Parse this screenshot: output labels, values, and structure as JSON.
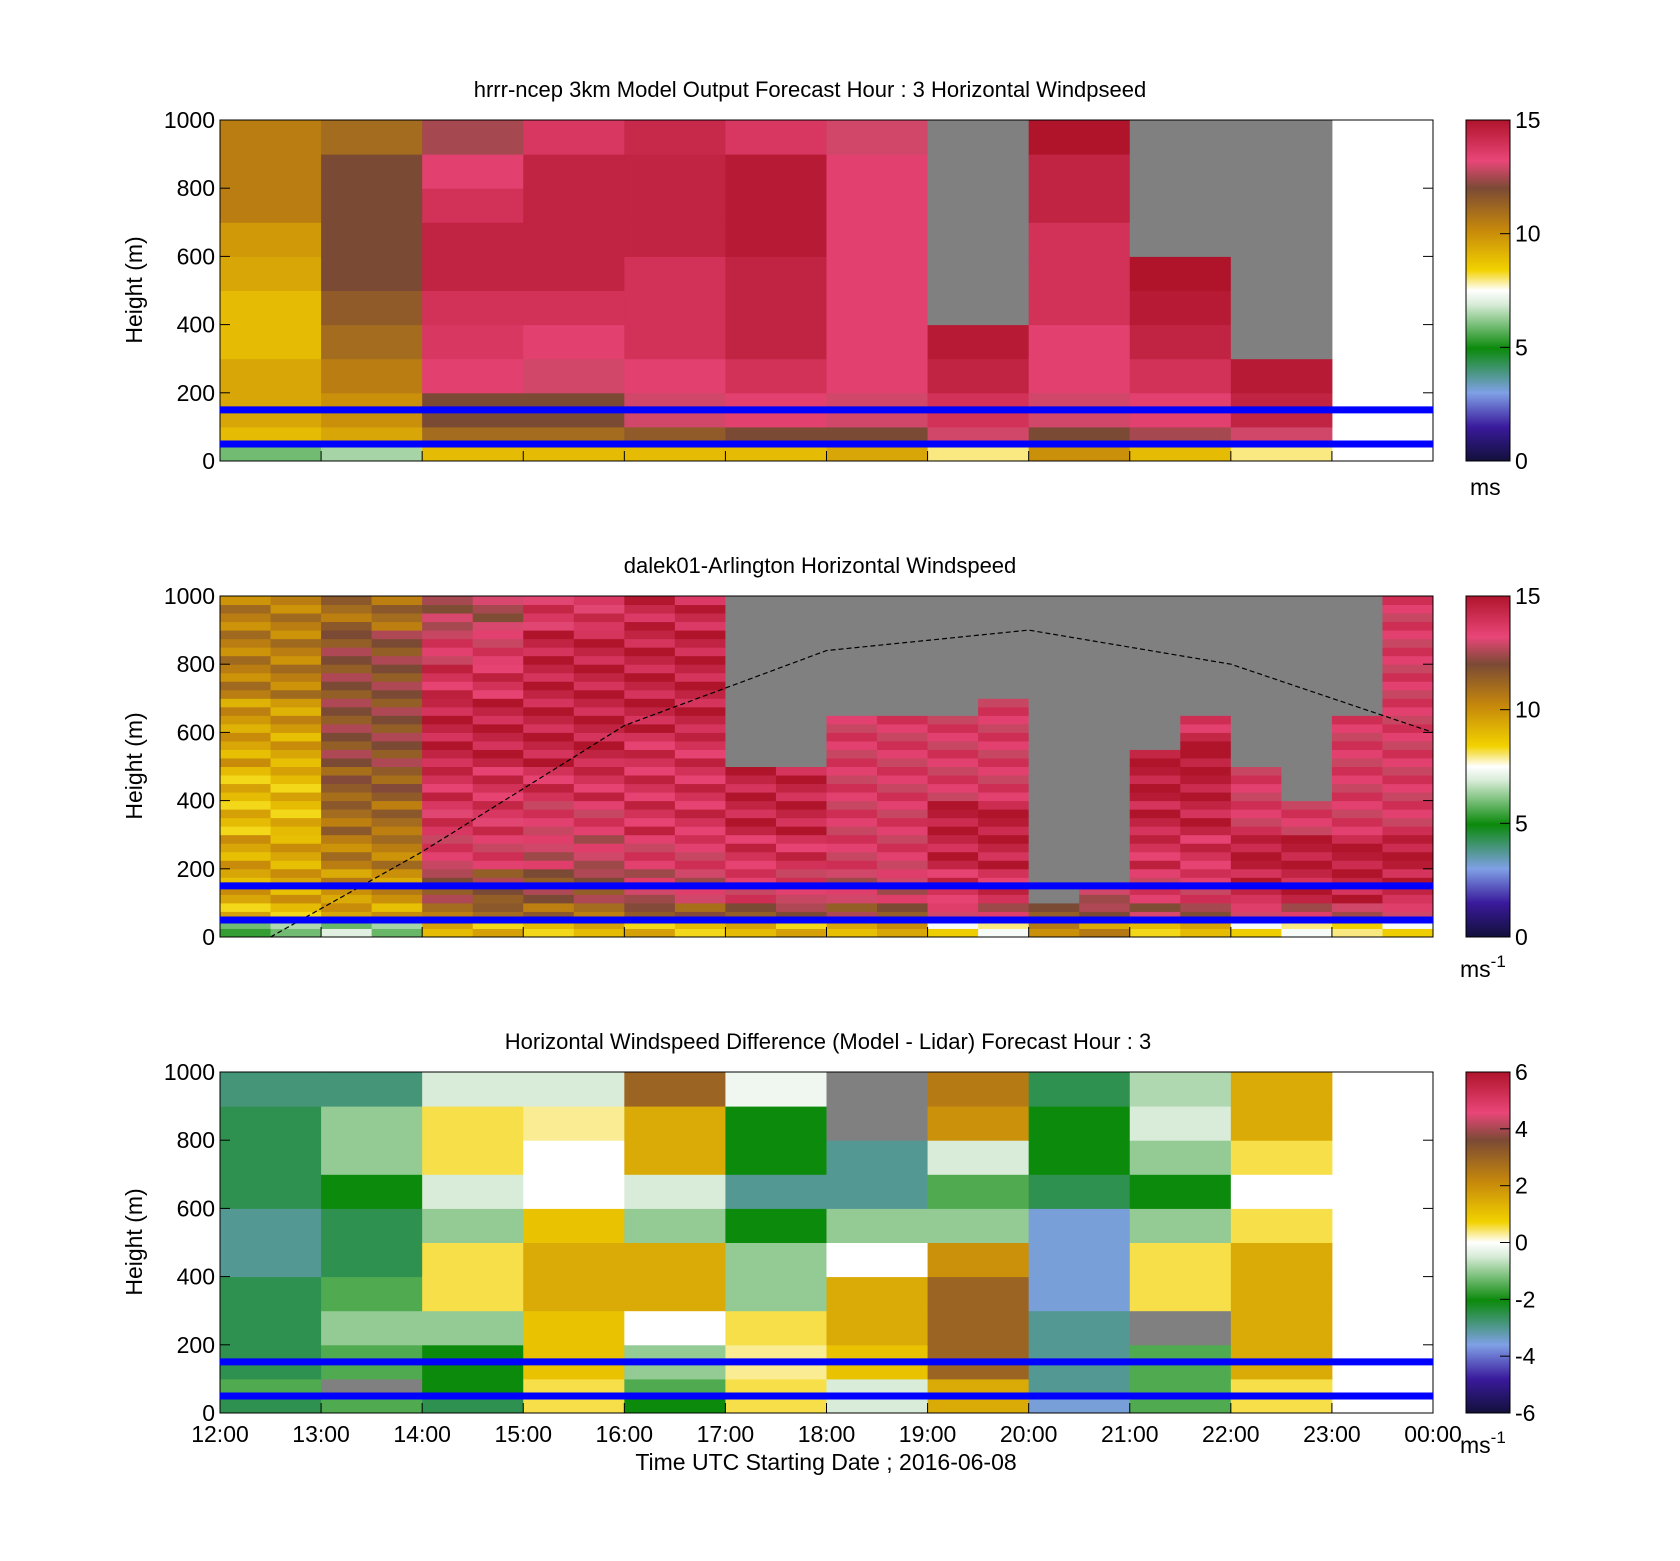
{
  "figure": {
    "xlabel": "Time UTC  Starting Date ; 2016-06-08",
    "x_ticks": [
      "12:00",
      "13:00",
      "14:00",
      "15:00",
      "16:00",
      "17:00",
      "18:00",
      "19:00",
      "20:00",
      "21:00",
      "22:00",
      "23:00",
      "00:00"
    ]
  },
  "chart_data": [
    {
      "type": "heatmap",
      "title": "hrrr-ncep 3km Model Output   Forecast Hour : 3 Horizontal Windpseed",
      "ylabel": "Height (m)",
      "ylim": [
        0,
        1000
      ],
      "y_ticks": [
        "0",
        "200",
        "400",
        "600",
        "800",
        "1000"
      ],
      "colorbar": {
        "label": "ms",
        "superscript": "",
        "ticks": [
          "0",
          "5",
          "10",
          "15"
        ],
        "range": [
          0,
          15
        ]
      },
      "hours": [
        "12:00",
        "13:00",
        "14:00",
        "15:00",
        "16:00",
        "17:00",
        "18:00",
        "19:00",
        "20:00",
        "21:00",
        "22:00"
      ],
      "reference_lines_m": [
        50,
        150
      ],
      "profile_heights_m": [
        25,
        75,
        150,
        250,
        350,
        450,
        550,
        650,
        750,
        850,
        950
      ],
      "windspeed_ms": [
        [
          6,
          9,
          9.5,
          9.5,
          9,
          9,
          9.5,
          9.8,
          10.5,
          10.5,
          10.5
        ],
        [
          6.5,
          9.5,
          10,
          10.5,
          11,
          11.5,
          12,
          12,
          12,
          12,
          11
        ],
        [
          9,
          11,
          12,
          13.5,
          13.8,
          14,
          14.5,
          14.5,
          14,
          13.5,
          12.5
        ],
        [
          9,
          11,
          12,
          13,
          13.5,
          14,
          14.5,
          14.5,
          14.5,
          14.5,
          13.8
        ],
        [
          9,
          11.5,
          13,
          13.5,
          14,
          14,
          14,
          14.5,
          14.5,
          14.5,
          14.3
        ],
        [
          9,
          12,
          13.5,
          14,
          14.5,
          14.5,
          14.5,
          14.8,
          14.8,
          14.8,
          13.8
        ],
        [
          9.5,
          12,
          13,
          13.5,
          13.5,
          13.5,
          13.5,
          13.5,
          13.5,
          13.5,
          13
        ],
        [
          8,
          13,
          14,
          14.5,
          14.8,
          null,
          null,
          null,
          null,
          null,
          null
        ],
        [
          10,
          12,
          13,
          13.5,
          13.5,
          14,
          14,
          14,
          14.5,
          14.5,
          15
        ],
        [
          9,
          12.5,
          13.5,
          14,
          14.5,
          14.8,
          15,
          null,
          null,
          null,
          null
        ],
        [
          8,
          13,
          14.5,
          14.8,
          null,
          null,
          null,
          null,
          null,
          null,
          null
        ]
      ]
    },
    {
      "type": "heatmap",
      "title": "dalek01-Arlington  Horizontal Windspeed",
      "ylabel": "Height (m)",
      "ylim": [
        0,
        1000
      ],
      "y_ticks": [
        "0",
        "200",
        "400",
        "600",
        "800",
        "1000"
      ],
      "colorbar": {
        "label": "ms",
        "superscript": "-1",
        "ticks": [
          "0",
          "5",
          "10",
          "15"
        ],
        "range": [
          0,
          15
        ]
      },
      "reference_lines_m": [
        50,
        150
      ],
      "segment_times": [
        "12:00",
        "12:30",
        "13:00",
        "13:30",
        "14:00",
        "14:30",
        "15:00",
        "15:30",
        "16:00",
        "16:30",
        "17:00",
        "17:30",
        "18:00",
        "18:30",
        "19:00",
        "19:30",
        "20:00",
        "20:30",
        "21:00",
        "21:30",
        "22:00",
        "22:30",
        "23:00",
        "23:30"
      ],
      "lidar_max_valid_height_m": [
        1000,
        1000,
        1000,
        1000,
        1000,
        1000,
        1000,
        1000,
        1000,
        1000,
        500,
        500,
        650,
        650,
        650,
        700,
        100,
        150,
        550,
        650,
        500,
        400,
        650,
        1000
      ],
      "solar_curve_note": "dashed arc peaks near 900 m around 20:00",
      "solar_curve_m": [
        [
          12.5,
          0
        ],
        [
          14,
          250
        ],
        [
          16,
          620
        ],
        [
          18,
          840
        ],
        [
          20,
          900
        ],
        [
          22,
          800
        ],
        [
          24,
          600
        ]
      ]
    },
    {
      "type": "heatmap",
      "title": "Horizontal Windspeed Difference (Model - Lidar) Forecast Hour : 3",
      "ylabel": "Height (m)",
      "ylim": [
        0,
        1000
      ],
      "y_ticks": [
        "0",
        "200",
        "400",
        "600",
        "800",
        "1000"
      ],
      "colorbar": {
        "label": "ms",
        "superscript": "-1",
        "ticks": [
          "-6",
          "-4",
          "-2",
          "0",
          "2",
          "4",
          "6"
        ],
        "range": [
          -6,
          6
        ]
      },
      "reference_lines_m": [
        50,
        150
      ],
      "profile_heights_m": [
        25,
        75,
        150,
        250,
        350,
        450,
        550,
        650,
        750,
        850,
        950
      ],
      "difference_ms": [
        [
          -2.5,
          -1.5,
          -2.5,
          -2.5,
          -2.5,
          -3,
          -3,
          -2.5,
          -2.5,
          -2.5,
          -2.8
        ],
        [
          -1.5,
          null,
          -1.5,
          -1,
          -1.5,
          -2.5,
          -2.5,
          -2,
          -1,
          -1,
          -2.8
        ],
        [
          -2.5,
          -2,
          -2,
          -1,
          0.5,
          0.5,
          -1,
          -0.5,
          0.5,
          0.5,
          -0.5
        ],
        [
          0.5,
          0.5,
          1,
          1,
          1.5,
          1.5,
          1,
          0,
          0,
          0.3,
          -0.5
        ],
        [
          -2,
          -1.5,
          -1,
          0,
          1.5,
          1.5,
          -1,
          -0.5,
          1.5,
          1.5,
          3
        ],
        [
          0.5,
          0.5,
          0.3,
          0.5,
          -1,
          -1,
          -2,
          -3,
          -2,
          -2,
          -0.2
        ],
        [
          -0.5,
          -0.5,
          1,
          1.5,
          1.5,
          0,
          -1,
          -3,
          -3,
          null,
          null
        ],
        [
          1.5,
          1.5,
          3,
          3,
          3,
          2,
          -1,
          -1.5,
          -0.5,
          2,
          2.5
        ],
        [
          -3.5,
          -3,
          -3,
          -3,
          -3.5,
          -3.5,
          -3.5,
          -2.5,
          -2,
          -2,
          -2.5
        ],
        [
          -1.5,
          -1.5,
          -1.5,
          null,
          0.5,
          0.5,
          -1,
          -2,
          -1,
          -0.5,
          -0.8
        ],
        [
          0.5,
          0.5,
          1.5,
          1.5,
          1.5,
          1.5,
          0.5,
          0,
          0.5,
          1.5,
          1.5
        ]
      ]
    }
  ]
}
